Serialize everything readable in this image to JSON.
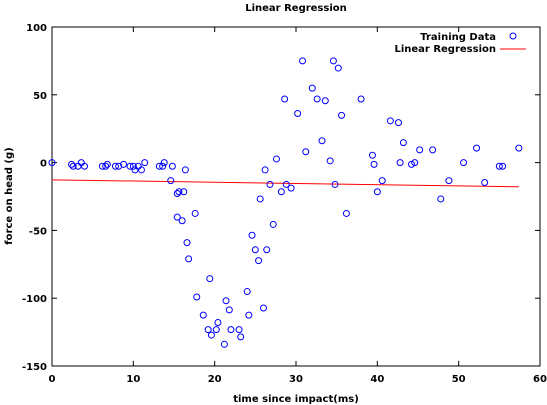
{
  "chart_data": {
    "type": "scatter",
    "title": "Linear Regression",
    "xlabel": "time since impact(ms)",
    "ylabel": "force on head (g)",
    "xlim": [
      0,
      60
    ],
    "ylim": [
      -150,
      100
    ],
    "xticks": [
      0,
      10,
      20,
      30,
      40,
      50,
      60
    ],
    "yticks": [
      -150,
      -100,
      -50,
      0,
      50,
      100
    ],
    "grid": false,
    "legend_position": "top-right",
    "series": [
      {
        "name": "Training Data",
        "kind": "scatter",
        "marker": "circle",
        "color": "#0000ff",
        "points": [
          [
            0.0,
            0.0
          ],
          [
            2.4,
            -1.3
          ],
          [
            2.6,
            -2.7
          ],
          [
            3.2,
            -2.7
          ],
          [
            3.6,
            0.0
          ],
          [
            4.0,
            -2.7
          ],
          [
            6.2,
            -2.7
          ],
          [
            6.6,
            -2.7
          ],
          [
            6.8,
            -1.3
          ],
          [
            7.8,
            -2.7
          ],
          [
            8.2,
            -2.7
          ],
          [
            8.8,
            -1.3
          ],
          [
            9.6,
            -2.7
          ],
          [
            10.0,
            -2.7
          ],
          [
            10.2,
            -5.4
          ],
          [
            10.6,
            -2.7
          ],
          [
            11.0,
            -5.4
          ],
          [
            11.4,
            0.0
          ],
          [
            13.2,
            -2.7
          ],
          [
            13.6,
            -2.7
          ],
          [
            13.8,
            0.0
          ],
          [
            14.6,
            -13.3
          ],
          [
            14.8,
            -2.7
          ],
          [
            15.4,
            -22.8
          ],
          [
            15.4,
            -40.2
          ],
          [
            15.6,
            -21.5
          ],
          [
            16.0,
            -42.9
          ],
          [
            16.2,
            -21.5
          ],
          [
            16.4,
            -5.4
          ],
          [
            16.6,
            -59.0
          ],
          [
            16.8,
            -71.0
          ],
          [
            17.6,
            -37.5
          ],
          [
            17.8,
            -99.1
          ],
          [
            18.6,
            -112.5
          ],
          [
            19.2,
            -123.2
          ],
          [
            19.4,
            -85.6
          ],
          [
            19.6,
            -127.2
          ],
          [
            20.2,
            -123.2
          ],
          [
            20.4,
            -117.9
          ],
          [
            21.2,
            -134.0
          ],
          [
            21.4,
            -101.9
          ],
          [
            21.8,
            -108.6
          ],
          [
            22.0,
            -123.2
          ],
          [
            23.0,
            -123.2
          ],
          [
            23.2,
            -128.5
          ],
          [
            24.0,
            -95.1
          ],
          [
            24.2,
            -112.5
          ],
          [
            24.6,
            -53.6
          ],
          [
            25.0,
            -64.3
          ],
          [
            25.4,
            -72.3
          ],
          [
            25.6,
            -26.8
          ],
          [
            26.0,
            -107.2
          ],
          [
            26.2,
            -5.4
          ],
          [
            26.4,
            -64.3
          ],
          [
            26.8,
            -16.1
          ],
          [
            27.2,
            -45.6
          ],
          [
            27.6,
            2.7
          ],
          [
            28.2,
            -21.5
          ],
          [
            28.6,
            46.9
          ],
          [
            28.8,
            -16.1
          ],
          [
            29.4,
            -18.8
          ],
          [
            30.2,
            36.2
          ],
          [
            30.8,
            75.0
          ],
          [
            31.2,
            8.0
          ],
          [
            32.0,
            54.9
          ],
          [
            32.6,
            46.9
          ],
          [
            33.2,
            16.1
          ],
          [
            33.6,
            45.6
          ],
          [
            34.2,
            1.3
          ],
          [
            34.6,
            75.0
          ],
          [
            34.8,
            -16.1
          ],
          [
            35.2,
            69.7
          ],
          [
            35.6,
            34.8
          ],
          [
            36.2,
            -37.5
          ],
          [
            38.0,
            46.9
          ],
          [
            39.4,
            5.4
          ],
          [
            39.6,
            -1.3
          ],
          [
            40.0,
            -21.5
          ],
          [
            40.6,
            -13.3
          ],
          [
            41.6,
            30.8
          ],
          [
            42.6,
            29.5
          ],
          [
            42.8,
            0.0
          ],
          [
            43.2,
            14.7
          ],
          [
            44.2,
            -1.3
          ],
          [
            44.6,
            0.0
          ],
          [
            45.2,
            9.4
          ],
          [
            46.8,
            9.4
          ],
          [
            47.8,
            -26.8
          ],
          [
            48.8,
            -13.3
          ],
          [
            50.6,
            0.0
          ],
          [
            52.2,
            10.7
          ],
          [
            53.2,
            -14.7
          ],
          [
            55.0,
            -2.7
          ],
          [
            55.4,
            -2.7
          ],
          [
            57.4,
            10.7
          ]
        ]
      },
      {
        "name": "Linear Regression",
        "kind": "line",
        "color": "#ff0000",
        "x": [
          0,
          57.4
        ],
        "y": [
          -12.7,
          -17.8
        ]
      }
    ]
  }
}
